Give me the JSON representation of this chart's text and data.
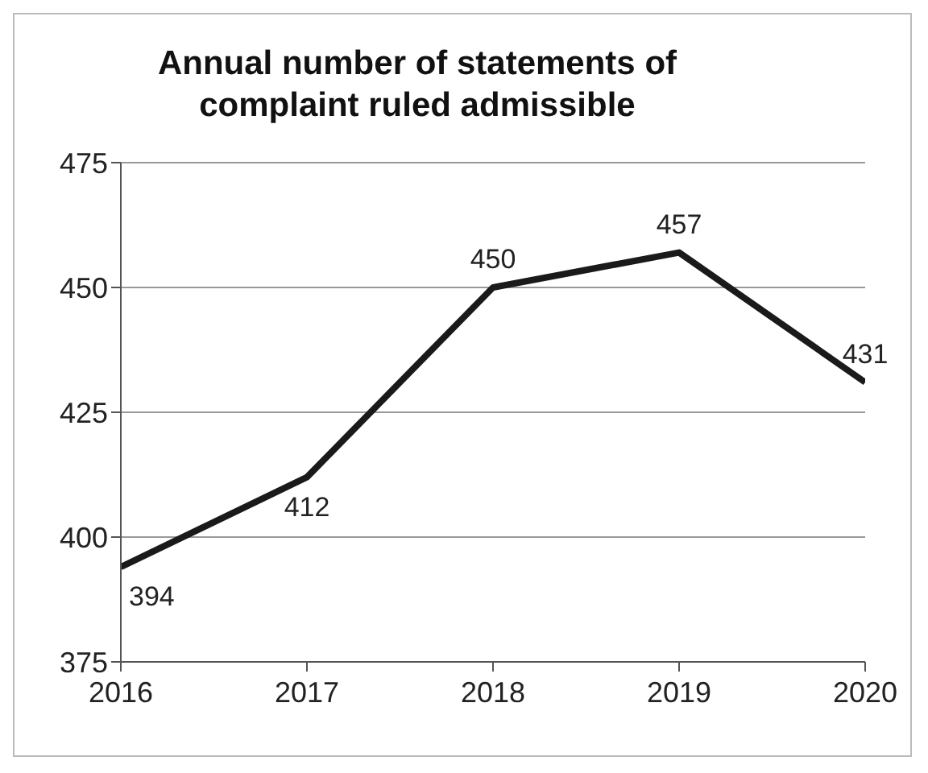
{
  "chart_data": {
    "type": "line",
    "title": "Annual number of statements of complaint ruled admissible",
    "x": [
      2016,
      2017,
      2018,
      2019,
      2020
    ],
    "series": [
      {
        "color": "#1a1a1a",
        "values": [
          394,
          412,
          450,
          457,
          431
        ]
      }
    ],
    "xlim": [
      2016,
      2020
    ],
    "xticks": [
      2016,
      2017,
      2018,
      2019,
      2020
    ],
    "ylim": [
      375,
      475
    ],
    "yticks": [
      375,
      400,
      425,
      450,
      475
    ],
    "grid": "y",
    "data_labels": true,
    "marker": "none",
    "line_style": "solid",
    "legend": false
  }
}
